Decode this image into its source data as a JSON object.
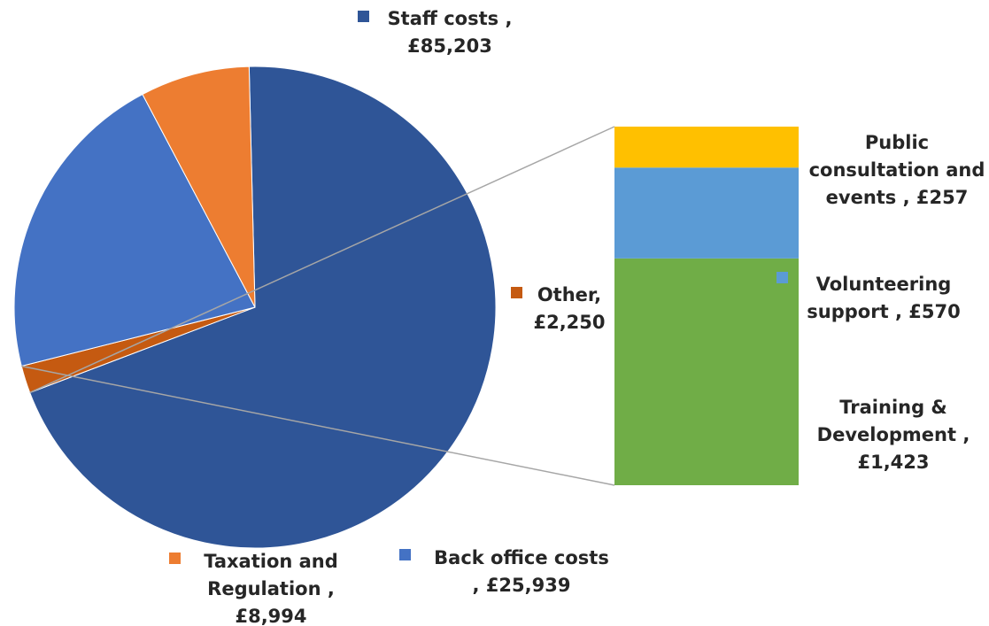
{
  "chart_data": {
    "type": "pie",
    "subtype": "bar-of-pie",
    "title": "",
    "currency": "£",
    "slices": [
      {
        "label": "Staff costs",
        "value": 85203,
        "value_text": "£85,203",
        "color": "#2F5597"
      },
      {
        "label": "Other",
        "value": 2250,
        "value_text": "£2,250",
        "color": "#C55A11"
      },
      {
        "label": "Back office costs",
        "value": 25939,
        "value_text": "£25,939",
        "color": "#4472C4"
      },
      {
        "label": "Taxation and Regulation",
        "value": 8994,
        "value_text": "£8,994",
        "color": "#ED7D31"
      }
    ],
    "breakdown_of": "Other",
    "breakdown": [
      {
        "label": "Training & Development",
        "value": 1423,
        "value_text": "£1,423",
        "color": "#70AD47"
      },
      {
        "label": "Volunteering support",
        "value": 570,
        "value_text": "£570",
        "color": "#5B9BD5"
      },
      {
        "label": "Public consultation and events",
        "value": 257,
        "value_text": "£257",
        "color": "#FFC000"
      }
    ],
    "labels": {
      "staff": [
        "Staff costs ,",
        "£85,203"
      ],
      "other": [
        "Other,",
        "£2,250"
      ],
      "back_office": [
        "Back office costs",
        ",  £25,939"
      ],
      "taxation": [
        "Taxation and",
        "Regulation ,",
        "£8,994"
      ],
      "public": [
        "Public",
        "consultation and",
        "events ,  £257"
      ],
      "volunteering": [
        "Volunteering",
        "support ,  £570"
      ],
      "training": [
        "Training &",
        "Development ,",
        "£1,423"
      ]
    },
    "connector_color": "#A6A6A6",
    "legend": "none",
    "grid": false
  }
}
